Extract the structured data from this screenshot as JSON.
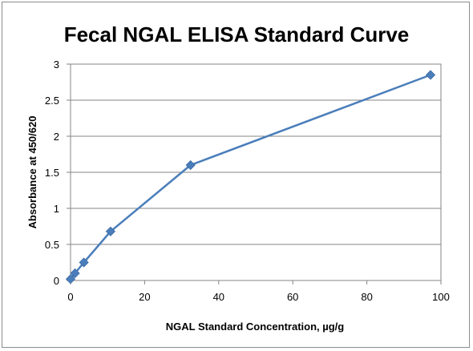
{
  "chart_data": {
    "type": "line",
    "title": "Fecal NGAL ELISA Standard Curve",
    "xlabel": "NGAL Standard Concentration, µg/g",
    "ylabel": "Absorbance at 450/620",
    "xlim": [
      0,
      100
    ],
    "ylim": [
      0,
      3
    ],
    "x_ticks": [
      "0",
      "20",
      "40",
      "60",
      "80",
      "100"
    ],
    "y_ticks": [
      "0",
      "0.5",
      "1",
      "1.5",
      "2",
      "2.5",
      "3"
    ],
    "grid": "horizontal",
    "legend": "none",
    "series": [
      {
        "color": "#4a7ebb",
        "marker": "diamond",
        "x": [
          0,
          1.2,
          3.6,
          10.8,
          32.4,
          97.2
        ],
        "y": [
          0.02,
          0.1,
          0.25,
          0.68,
          1.6,
          2.85
        ]
      }
    ]
  }
}
